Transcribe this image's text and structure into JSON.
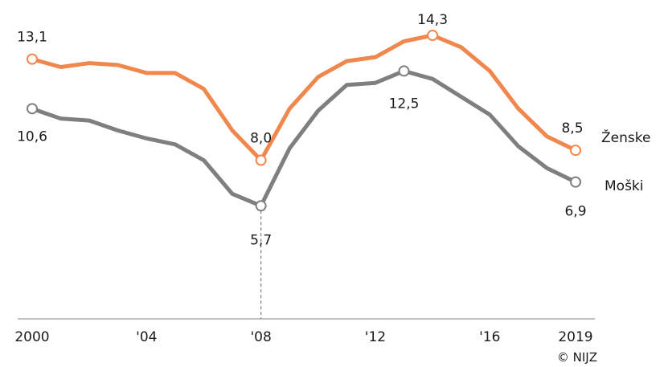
{
  "chart_data": {
    "type": "line",
    "x": [
      2000,
      2001,
      2002,
      2003,
      2004,
      2005,
      2006,
      2007,
      2008,
      2009,
      2010,
      2011,
      2012,
      2013,
      2014,
      2015,
      2016,
      2017,
      2018,
      2019
    ],
    "x_tick_labels": [
      {
        "x": 2000,
        "label": "2000"
      },
      {
        "x": 2004,
        "label": "'04"
      },
      {
        "x": 2008,
        "label": "'08"
      },
      {
        "x": 2012,
        "label": "'12"
      },
      {
        "x": 2016,
        "label": "'16"
      },
      {
        "x": 2019,
        "label": "2019"
      }
    ],
    "series": [
      {
        "name": "Ženske",
        "color": "#f0884e",
        "values": [
          13.1,
          12.7,
          12.9,
          12.8,
          12.4,
          12.4,
          11.6,
          9.5,
          8.0,
          10.6,
          12.2,
          13.0,
          13.2,
          14.0,
          14.3,
          13.7,
          12.5,
          10.6,
          9.2,
          8.5
        ],
        "labels": [
          {
            "x": 2000,
            "text": "13,1"
          },
          {
            "x": 2008,
            "text": "8,0"
          },
          {
            "x": 2014,
            "text": "14,3"
          },
          {
            "x": 2019,
            "text": "8,5"
          }
        ]
      },
      {
        "name": "Moški",
        "color": "#7f7f7f",
        "values": [
          10.6,
          10.1,
          10.0,
          9.5,
          9.1,
          8.8,
          8.0,
          6.3,
          5.7,
          8.6,
          10.5,
          11.8,
          11.9,
          12.5,
          12.1,
          11.2,
          10.3,
          8.7,
          7.6,
          6.9
        ],
        "labels": [
          {
            "x": 2000,
            "text": "10,6"
          },
          {
            "x": 2008,
            "text": "5,7"
          },
          {
            "x": 2013,
            "text": "12,5"
          },
          {
            "x": 2019,
            "text": "6,9"
          }
        ]
      }
    ],
    "ylim": [
      0,
      15.5
    ],
    "marked_x": 2008,
    "grid": false,
    "legend": "inline-right",
    "credit": "© NIJZ"
  }
}
